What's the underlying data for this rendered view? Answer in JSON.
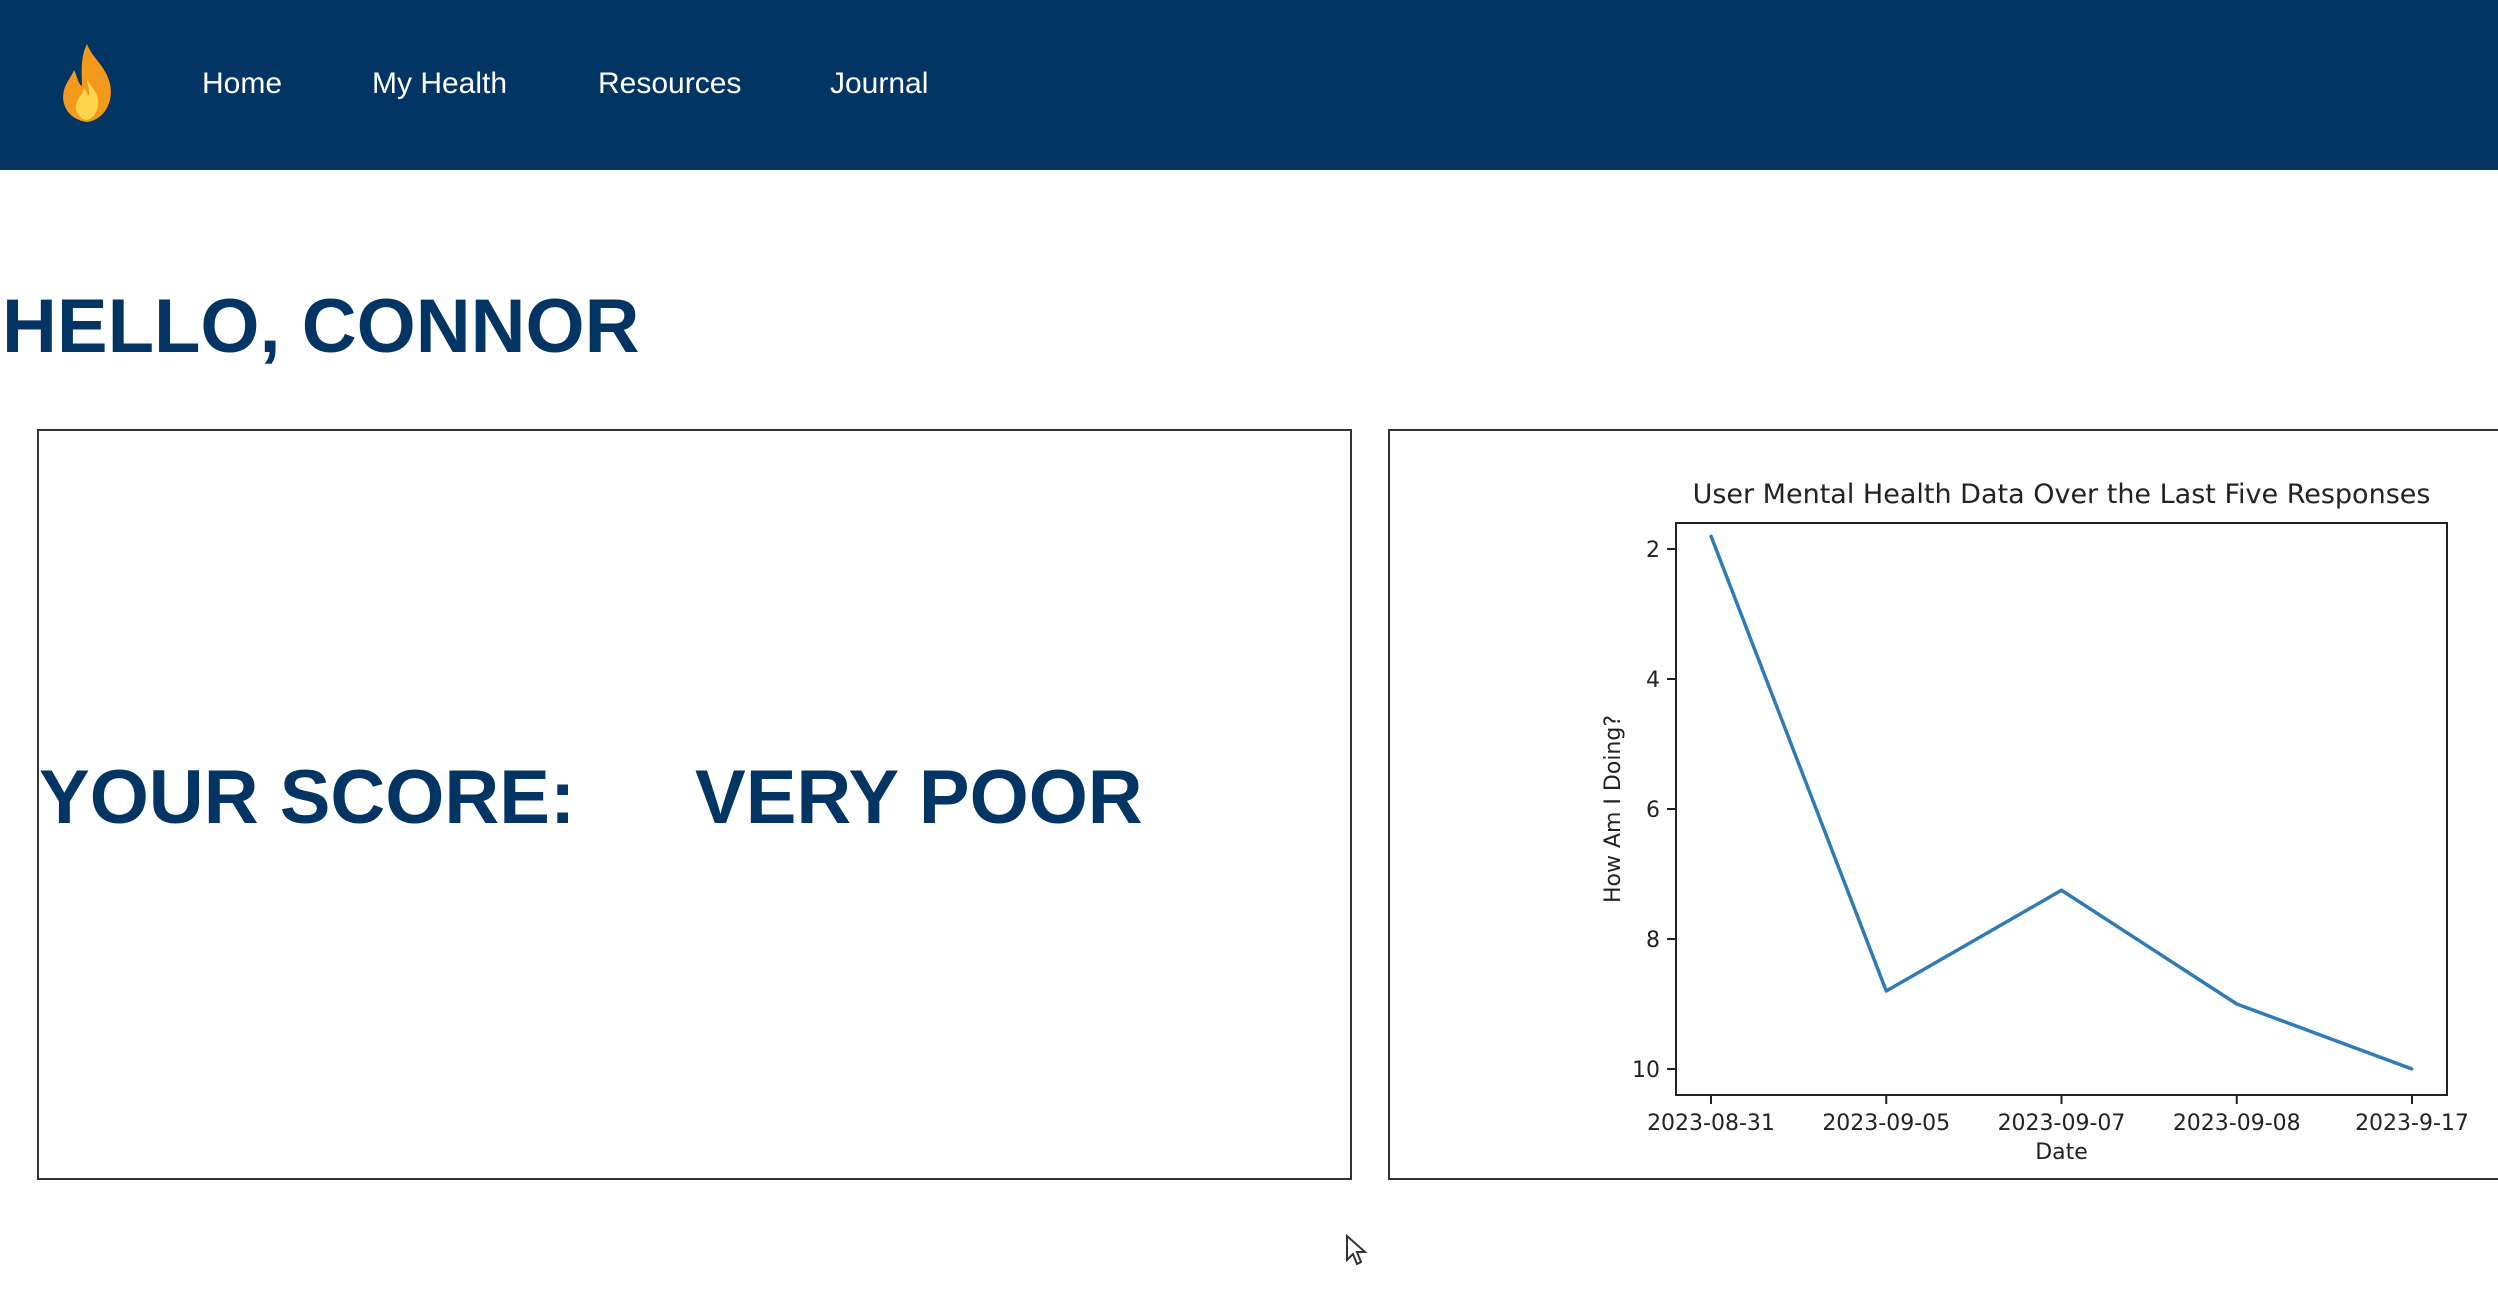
{
  "nav": {
    "logo_icon": "flame-icon",
    "items": [
      {
        "label": "Home"
      },
      {
        "label": "My Health"
      },
      {
        "label": "Resources"
      },
      {
        "label": "Journal"
      }
    ],
    "background": "#023563"
  },
  "greeting": "HELLO, CONNOR",
  "score": {
    "label": "YOUR SCORE:",
    "value": "VERY POOR"
  },
  "colors": {
    "brand": "#023563",
    "line": "#2f7bb5"
  },
  "chart_data": {
    "type": "line",
    "title": "User Mental Health Data Over the Last Five Responses",
    "xlabel": "Date",
    "ylabel": "How Am I Doing?",
    "categories": [
      "2023-08-31",
      "2023-09-05",
      "2023-09-07",
      "2023-09-08",
      "2023-9-17"
    ],
    "values": [
      1.8,
      8.8,
      7.25,
      9.0,
      10.0
    ],
    "yticks": [
      2,
      4,
      6,
      8,
      10
    ],
    "ylim": [
      1.6,
      10.4
    ],
    "y_inverted": true,
    "grid": false
  }
}
